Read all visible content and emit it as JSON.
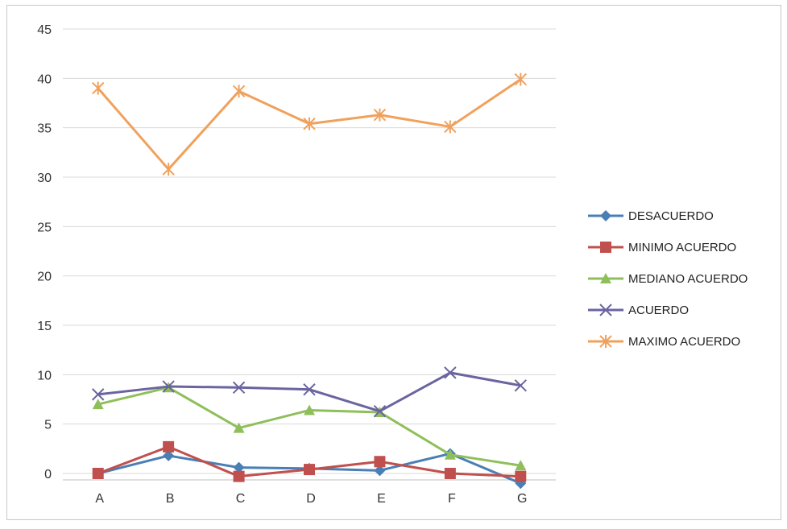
{
  "chart_data": {
    "type": "line",
    "categories": [
      "A",
      "B",
      "C",
      "D",
      "E",
      "F",
      "G"
    ],
    "ylim": [
      0,
      45
    ],
    "yticks": [
      0,
      5,
      10,
      15,
      20,
      25,
      30,
      35,
      40,
      45
    ],
    "grid": "horizontal",
    "legend_position": "right",
    "series": [
      {
        "name": "DESACUERDO",
        "color": "#4a7fb5",
        "marker": "diamond",
        "values": [
          0,
          1.8,
          0.6,
          0.5,
          0.3,
          2,
          -1
        ]
      },
      {
        "name": "MINIMO ACUERDO",
        "color": "#c0504d",
        "marker": "square",
        "values": [
          0,
          2.7,
          -0.3,
          0.4,
          1.2,
          0,
          -0.3
        ]
      },
      {
        "name": "MEDIANO ACUERDO",
        "color": "#8fbf5a",
        "marker": "triangle",
        "values": [
          7,
          8.7,
          4.6,
          6.4,
          6.2,
          1.9,
          0.8
        ]
      },
      {
        "name": "ACUERDO",
        "color": "#6a64a0",
        "marker": "x",
        "values": [
          8,
          8.8,
          8.7,
          8.5,
          6.3,
          10.2,
          8.9
        ]
      },
      {
        "name": "MAXIMO ACUERDO",
        "color": "#f0a15c",
        "marker": "star",
        "values": [
          39,
          30.8,
          38.7,
          35.4,
          36.3,
          35.1,
          39.9
        ]
      }
    ]
  }
}
